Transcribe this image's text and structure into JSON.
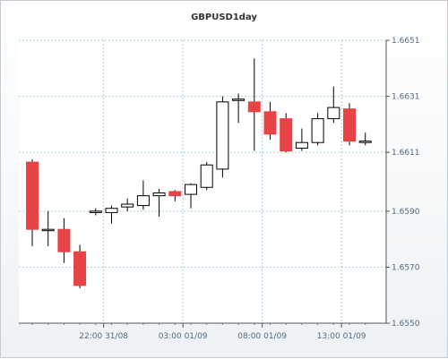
{
  "chart_data": {
    "type": "candlestick",
    "title": "GBPUSD1day",
    "ylim": [
      1.655,
      1.6651
    ],
    "y_ticks": [
      "1.6550",
      "1.6570",
      "1.6590",
      "1.6611",
      "1.6631",
      "1.6651"
    ],
    "y_tick_values": [
      1.655,
      1.657,
      1.659,
      1.6611,
      1.6631,
      1.6651
    ],
    "x_ticks": [
      "22:00 31/08",
      "03:00 01/09",
      "08:00 01/09",
      "13:00 01/09"
    ],
    "x_tick_index": [
      4.5,
      9.5,
      14.5,
      19.5
    ],
    "grid": true,
    "colors": {
      "up": "#ffffff",
      "down": "#e84345",
      "wick": "#000000",
      "grid": "#a9cfd8"
    },
    "candles": [
      {
        "o": 1.66075,
        "h": 1.66085,
        "l": 1.65775,
        "c": 1.65835
      },
      {
        "o": 1.65835,
        "h": 1.659,
        "l": 1.65775,
        "c": 1.65835
      },
      {
        "o": 1.65835,
        "h": 1.65875,
        "l": 1.65715,
        "c": 1.65755
      },
      {
        "o": 1.65755,
        "h": 1.6578,
        "l": 1.65625,
        "c": 1.65635
      },
      {
        "o": 1.65895,
        "h": 1.6591,
        "l": 1.65885,
        "c": 1.659
      },
      {
        "o": 1.65895,
        "h": 1.6592,
        "l": 1.65855,
        "c": 1.6591
      },
      {
        "o": 1.65915,
        "h": 1.65945,
        "l": 1.659,
        "c": 1.65925
      },
      {
        "o": 1.6592,
        "h": 1.6601,
        "l": 1.65905,
        "c": 1.65955
      },
      {
        "o": 1.65955,
        "h": 1.6598,
        "l": 1.6588,
        "c": 1.65965
      },
      {
        "o": 1.6597,
        "h": 1.65975,
        "l": 1.65935,
        "c": 1.65955
      },
      {
        "o": 1.6596,
        "h": 1.66,
        "l": 1.6591,
        "c": 1.65995
      },
      {
        "o": 1.65985,
        "h": 1.66075,
        "l": 1.65975,
        "c": 1.66065
      },
      {
        "o": 1.6605,
        "h": 1.6631,
        "l": 1.6602,
        "c": 1.6629
      },
      {
        "o": 1.66295,
        "h": 1.6632,
        "l": 1.66215,
        "c": 1.663
      },
      {
        "o": 1.6629,
        "h": 1.66445,
        "l": 1.66115,
        "c": 1.66255
      },
      {
        "o": 1.66255,
        "h": 1.6629,
        "l": 1.66155,
        "c": 1.66175
      },
      {
        "o": 1.6623,
        "h": 1.6625,
        "l": 1.6611,
        "c": 1.66115
      },
      {
        "o": 1.66125,
        "h": 1.66195,
        "l": 1.66115,
        "c": 1.66145
      },
      {
        "o": 1.66145,
        "h": 1.6625,
        "l": 1.66135,
        "c": 1.6623
      },
      {
        "o": 1.6623,
        "h": 1.66345,
        "l": 1.66215,
        "c": 1.6627
      },
      {
        "o": 1.66265,
        "h": 1.66285,
        "l": 1.66135,
        "c": 1.6615
      },
      {
        "o": 1.66145,
        "h": 1.6618,
        "l": 1.66135,
        "c": 1.6615
      }
    ]
  }
}
